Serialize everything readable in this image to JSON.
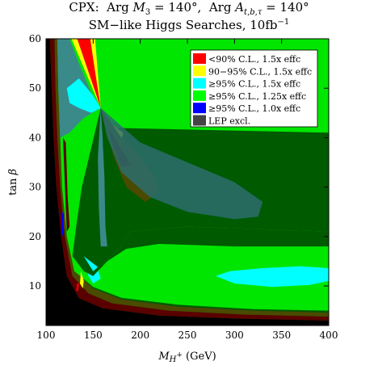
{
  "title_line1": "CPX:  Arg M₃ = 140°,  Arg A_{t,b,τ} = 140°",
  "title_line2": "SM−like Higgs Searches, 10fb⁻¹",
  "chart_data": {
    "type": "heatmap",
    "xlabel": "M_{H+} (GeV)",
    "ylabel": "tan β",
    "xlim": [
      100,
      400
    ],
    "ylim": [
      2,
      60
    ],
    "xticks": [
      100,
      150,
      200,
      250,
      300,
      350,
      400
    ],
    "yticks": [
      10,
      20,
      30,
      40,
      50,
      60
    ],
    "grid": false,
    "legend_position": "top-right",
    "legend": [
      {
        "label": "<90% C.L., 1.5x effc",
        "color": "#ff0000"
      },
      {
        "label": "90−95% C.L., 1.5x effc",
        "color": "#ffff00"
      },
      {
        "label": "≥95% C.L., 1.5x effc",
        "color": "#00ffff"
      },
      {
        "label": "≥95% C.L., 1.25x effc",
        "color": "#00ff00"
      },
      {
        "label": "≥95% C.L., 1.0x effc",
        "color": "#0000ff"
      },
      {
        "label": "LEP excl.",
        "color": "#444444"
      }
    ],
    "background_color": "#005a00",
    "regions": [
      {
        "name": "LEP excluded",
        "color": "#000000",
        "points": [
          [
            100,
            2
          ],
          [
            100,
            60
          ],
          [
            104,
            60
          ],
          [
            106,
            50
          ],
          [
            108,
            40
          ],
          [
            111,
            30
          ],
          [
            116,
            20
          ],
          [
            122,
            12
          ],
          [
            135,
            7.5
          ],
          [
            160,
            5.5
          ],
          [
            220,
            4
          ],
          [
            300,
            3.4
          ],
          [
            400,
            3
          ],
          [
            400,
            2
          ]
        ]
      },
      {
        "name": "dark red band",
        "color": "#5a0000",
        "points": [
          [
            104,
            60
          ],
          [
            109,
            60
          ],
          [
            110,
            50
          ],
          [
            112,
            40
          ],
          [
            115,
            30
          ],
          [
            120,
            20
          ],
          [
            128,
            12
          ],
          [
            145,
            8.5
          ],
          [
            170,
            6.5
          ],
          [
            230,
            5
          ],
          [
            310,
            4.2
          ],
          [
            400,
            3.8
          ],
          [
            400,
            3
          ],
          [
            300,
            3.4
          ],
          [
            220,
            4
          ],
          [
            160,
            5.5
          ],
          [
            135,
            7.5
          ],
          [
            122,
            12
          ],
          [
            116,
            20
          ],
          [
            111,
            30
          ],
          [
            108,
            40
          ],
          [
            106,
            50
          ]
        ]
      },
      {
        "name": "dark olive band",
        "color": "#4a4a00",
        "points": [
          [
            109,
            60
          ],
          [
            112,
            60
          ],
          [
            113,
            50
          ],
          [
            115,
            40
          ],
          [
            117,
            30
          ],
          [
            122,
            20
          ],
          [
            130,
            13
          ],
          [
            150,
            9.5
          ],
          [
            180,
            7.3
          ],
          [
            240,
            5.8
          ],
          [
            320,
            5
          ],
          [
            400,
            4.6
          ],
          [
            400,
            3.8
          ],
          [
            310,
            4.2
          ],
          [
            230,
            5
          ],
          [
            170,
            6.5
          ],
          [
            145,
            8.5
          ],
          [
            128,
            12
          ],
          [
            120,
            20
          ],
          [
            115,
            30
          ],
          [
            112,
            40
          ],
          [
            110,
            50
          ]
        ]
      },
      {
        "name": "green fill",
        "color": "#00e600",
        "points": [
          [
            112,
            60
          ],
          [
            400,
            60
          ],
          [
            400,
            41
          ],
          [
            168,
            42
          ],
          [
            158,
            46
          ],
          [
            148,
            38
          ],
          [
            138,
            30
          ],
          [
            132,
            22
          ],
          [
            128,
            16
          ],
          [
            150,
            13
          ],
          [
            175,
            17
          ],
          [
            190,
            21
          ],
          [
            250,
            22
          ],
          [
            400,
            21
          ],
          [
            400,
            5
          ],
          [
            320,
            5.3
          ],
          [
            240,
            6.2
          ],
          [
            180,
            7.6
          ],
          [
            150,
            9.8
          ],
          [
            130,
            13
          ],
          [
            122,
            20
          ],
          [
            117,
            30
          ],
          [
            115,
            40
          ],
          [
            113,
            50
          ]
        ]
      },
      {
        "name": "teal upper-left",
        "color": "#3a8a8a",
        "points": [
          [
            112,
            60
          ],
          [
            125,
            60
          ],
          [
            135,
            55
          ],
          [
            148,
            49
          ],
          [
            158,
            46
          ],
          [
            140,
            44
          ],
          [
            125,
            41
          ],
          [
            115,
            40
          ],
          [
            113,
            50
          ]
        ]
      },
      {
        "name": "cyan upper",
        "color": "#00ffff",
        "points": [
          [
            122,
            50
          ],
          [
            135,
            52
          ],
          [
            150,
            48.5
          ],
          [
            158,
            46
          ],
          [
            148,
            45
          ],
          [
            135,
            46
          ],
          [
            125,
            47
          ]
        ]
      },
      {
        "name": "cyan right lobe",
        "color": "#00ffff",
        "points": [
          [
            280,
            12
          ],
          [
            300,
            10.5
          ],
          [
            340,
            9.8
          ],
          [
            380,
            10.2
          ],
          [
            400,
            11
          ],
          [
            400,
            13.6
          ],
          [
            370,
            14
          ],
          [
            330,
            13.6
          ],
          [
            295,
            13
          ]
        ]
      },
      {
        "name": "cyan lower",
        "color": "#00ffff",
        "points": [
          [
            140,
            16
          ],
          [
            145,
            12
          ],
          [
            150,
            10.5
          ],
          [
            158,
            11.5
          ],
          [
            154,
            14
          ]
        ]
      },
      {
        "name": "dark green lower",
        "color": "#005a00",
        "points": [
          [
            128,
            16
          ],
          [
            135,
            15.5
          ],
          [
            140,
            16
          ],
          [
            150,
            13
          ],
          [
            175,
            17
          ],
          [
            190,
            21
          ],
          [
            250,
            22
          ],
          [
            400,
            21
          ],
          [
            400,
            18
          ],
          [
            300,
            18
          ],
          [
            220,
            18.5
          ],
          [
            185,
            17.5
          ],
          [
            165,
            15
          ],
          [
            150,
            12
          ],
          [
            140,
            13
          ]
        ]
      },
      {
        "name": "red wedge top",
        "color": "#ff0000",
        "points": [
          [
            133,
            60
          ],
          [
            147,
            60
          ],
          [
            158,
            46
          ]
        ]
      },
      {
        "name": "yellow wedge top",
        "color": "#ffff00",
        "points": [
          [
            127,
            60
          ],
          [
            133,
            60
          ],
          [
            158,
            46
          ],
          [
            150,
            56
          ],
          [
            147,
            60
          ],
          [
            152,
            60
          ],
          [
            158,
            46
          ]
        ]
      },
      {
        "name": "yellow diagonal",
        "color": "#ffff00",
        "points": [
          [
            158,
            46
          ],
          [
            170,
            41
          ],
          [
            180,
            39.5
          ],
          [
            182,
            41
          ],
          [
            168,
            43
          ]
        ]
      },
      {
        "name": "red diagonal",
        "color": "#ff0000",
        "points": [
          [
            158,
            46
          ],
          [
            172,
            40
          ],
          [
            180,
            38
          ],
          [
            179,
            40
          ],
          [
            168,
            42
          ]
        ]
      },
      {
        "name": "olive lobe",
        "color": "#4a4a00",
        "points": [
          [
            158,
            46
          ],
          [
            180,
            40
          ],
          [
            200,
            36
          ],
          [
            215,
            32
          ],
          [
            220,
            29
          ],
          [
            205,
            27
          ],
          [
            185,
            30
          ],
          [
            172,
            36
          ]
        ]
      },
      {
        "name": "dark red inner lobe",
        "color": "#5a0000",
        "points": [
          [
            166,
            42
          ],
          [
            182,
            37
          ],
          [
            190,
            34.5
          ],
          [
            180,
            34
          ],
          [
            172,
            38
          ]
        ]
      },
      {
        "name": "teal big ellipse",
        "color": "#2c6d6d",
        "alpha": 0.85,
        "points": [
          [
            158,
            46
          ],
          [
            200,
            39
          ],
          [
            250,
            35
          ],
          [
            300,
            31
          ],
          [
            330,
            27
          ],
          [
            325,
            24
          ],
          [
            300,
            23.5
          ],
          [
            250,
            25
          ],
          [
            210,
            28
          ],
          [
            180,
            33
          ],
          [
            165,
            40
          ]
        ]
      },
      {
        "name": "teal diagonal",
        "color": "#3a8a8a",
        "points": [
          [
            158,
            46
          ],
          [
            160,
            40
          ],
          [
            162,
            32
          ],
          [
            163,
            22
          ],
          [
            165,
            18
          ],
          [
            158,
            18
          ],
          [
            156,
            26
          ],
          [
            155,
            36
          ]
        ]
      },
      {
        "name": "dark red left strip",
        "color": "#5a0000",
        "points": [
          [
            118,
            40
          ],
          [
            121,
            39
          ],
          [
            123,
            28
          ],
          [
            125,
            22
          ],
          [
            122,
            21
          ]
        ]
      },
      {
        "name": "blue sliver",
        "color": "#0000ff",
        "points": [
          [
            117,
            25
          ],
          [
            119,
            24.5
          ],
          [
            118,
            20
          ],
          [
            116,
            21
          ]
        ]
      },
      {
        "name": "green left blobs",
        "color": "#00e600",
        "points": [
          [
            125,
            40
          ],
          [
            128,
            40
          ],
          [
            132,
            32
          ],
          [
            135,
            26
          ],
          [
            131,
            26
          ],
          [
            128,
            32
          ]
        ]
      },
      {
        "name": "yellow low",
        "color": "#ffff00",
        "points": [
          [
            137,
            13
          ],
          [
            140,
            11
          ],
          [
            139,
            9.5
          ],
          [
            136,
            10.5
          ]
        ]
      },
      {
        "name": "red low",
        "color": "#ff0000",
        "points": [
          [
            133,
            10.5
          ],
          [
            135,
            10.5
          ],
          [
            134,
            9
          ],
          [
            132,
            9
          ]
        ]
      }
    ]
  }
}
